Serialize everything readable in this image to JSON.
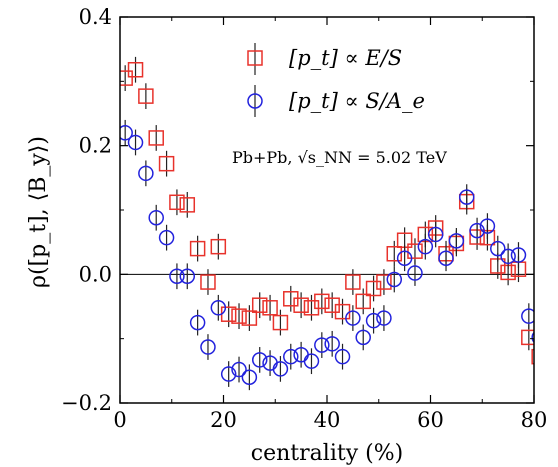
{
  "chart_data": {
    "type": "scatter",
    "xlabel": "centrality (%)",
    "ylabel": "ρ([p_t], ⟨B_y⟩)",
    "xlim": [
      0,
      80
    ],
    "ylim": [
      -0.2,
      0.4
    ],
    "xticks": [
      0,
      20,
      40,
      60,
      80
    ],
    "yticks": [
      -0.2,
      0.0,
      0.2,
      0.4
    ],
    "xtick_labels": [
      "0",
      "20",
      "40",
      "60",
      "80"
    ],
    "ytick_labels": [
      "−0.2",
      "0.0",
      "0.2",
      "0.4"
    ],
    "reference_line_y": 0.0,
    "annotation": "Pb+Pb, √s_NN = 5.02 TeV",
    "legend_position": "top-right",
    "series": [
      {
        "name": "[p_t] ∝ E/S",
        "marker": "square",
        "color": "#e8322b",
        "x": [
          1,
          3,
          5,
          7,
          9,
          11,
          13,
          15,
          17,
          19,
          21,
          23,
          25,
          27,
          29,
          31,
          33,
          35,
          37,
          39,
          41,
          43,
          45,
          47,
          49,
          51,
          53,
          55,
          57,
          59,
          61,
          63,
          65,
          67,
          69,
          71,
          73,
          75,
          77,
          79,
          81
        ],
        "y": [
          0.305,
          0.318,
          0.277,
          0.212,
          0.172,
          0.112,
          0.108,
          0.04,
          -0.012,
          0.043,
          -0.062,
          -0.065,
          -0.068,
          -0.048,
          -0.052,
          -0.075,
          -0.038,
          -0.048,
          -0.052,
          -0.042,
          -0.048,
          -0.058,
          -0.012,
          -0.042,
          -0.022,
          -0.012,
          0.032,
          0.053,
          0.036,
          0.062,
          0.072,
          0.032,
          0.048,
          0.113,
          0.058,
          0.057,
          0.013,
          0.003,
          0.008,
          -0.098,
          -0.128
        ],
        "yerr": [
          0.02,
          0.02,
          0.02,
          0.02,
          0.02,
          0.02,
          0.02,
          0.02,
          0.02,
          0.02,
          0.02,
          0.02,
          0.02,
          0.02,
          0.02,
          0.02,
          0.02,
          0.02,
          0.02,
          0.02,
          0.02,
          0.02,
          0.02,
          0.02,
          0.02,
          0.02,
          0.02,
          0.02,
          0.02,
          0.02,
          0.02,
          0.02,
          0.02,
          0.02,
          0.02,
          0.02,
          0.02,
          0.02,
          0.02,
          0.02,
          0.02
        ]
      },
      {
        "name": "[p_t] ∝ S/A_e",
        "marker": "circle",
        "color": "#2222dd",
        "x": [
          1,
          3,
          5,
          7,
          9,
          11,
          13,
          15,
          17,
          19,
          21,
          23,
          25,
          27,
          29,
          31,
          33,
          35,
          37,
          39,
          41,
          43,
          45,
          47,
          49,
          51,
          53,
          55,
          57,
          59,
          61,
          63,
          65,
          67,
          69,
          71,
          73,
          75,
          77,
          79,
          81
        ],
        "y": [
          0.22,
          0.205,
          0.157,
          0.088,
          0.057,
          -0.003,
          -0.003,
          -0.075,
          -0.113,
          -0.052,
          -0.155,
          -0.148,
          -0.16,
          -0.133,
          -0.138,
          -0.147,
          -0.128,
          -0.125,
          -0.135,
          -0.11,
          -0.108,
          -0.128,
          -0.068,
          -0.098,
          -0.072,
          -0.068,
          -0.008,
          0.025,
          0.002,
          0.043,
          0.062,
          0.025,
          0.052,
          0.12,
          0.068,
          0.075,
          0.04,
          0.028,
          0.03,
          -0.065,
          -0.098
        ],
        "yerr": [
          0.02,
          0.02,
          0.02,
          0.02,
          0.02,
          0.02,
          0.02,
          0.02,
          0.02,
          0.02,
          0.02,
          0.02,
          0.02,
          0.02,
          0.02,
          0.02,
          0.02,
          0.02,
          0.02,
          0.02,
          0.02,
          0.02,
          0.02,
          0.02,
          0.02,
          0.02,
          0.02,
          0.02,
          0.02,
          0.02,
          0.02,
          0.02,
          0.02,
          0.02,
          0.02,
          0.02,
          0.02,
          0.02,
          0.02,
          0.02,
          0.02
        ]
      }
    ]
  }
}
